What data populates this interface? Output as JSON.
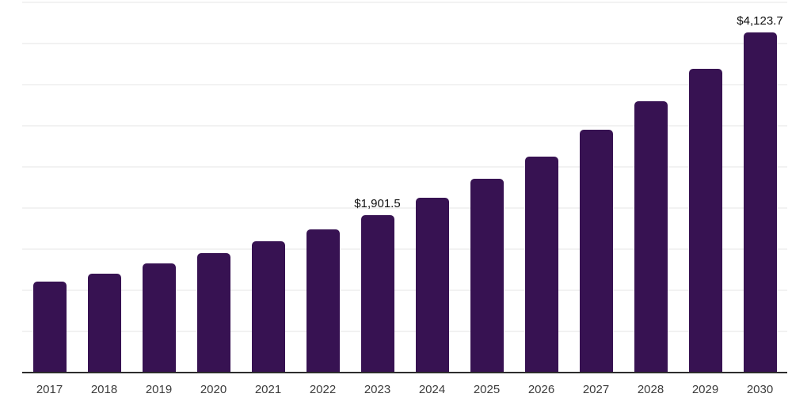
{
  "chart_data": {
    "type": "bar",
    "title": "",
    "xlabel": "",
    "ylabel": "",
    "categories": [
      "2017",
      "2018",
      "2019",
      "2020",
      "2021",
      "2022",
      "2023",
      "2024",
      "2025",
      "2026",
      "2027",
      "2028",
      "2029",
      "2030"
    ],
    "values": [
      1095,
      1190,
      1315,
      1440,
      1585,
      1730,
      1901.5,
      2115,
      2345,
      2615,
      2940,
      3290,
      3685,
      4123.7
    ],
    "data_labels": [
      "",
      "",
      "",
      "",
      "",
      "",
      "$1,901.5",
      "",
      "",
      "",
      "",
      "",
      "",
      "$4,123.7"
    ],
    "ylim": [
      0,
      4500
    ],
    "grid_step": 500,
    "grid": true,
    "legend": false,
    "y_axis_labels_visible": false,
    "colors": {
      "bar": "#371252",
      "gridline": "#f2f2f2",
      "axis": "#2d2d2d",
      "data_label": "#101010",
      "tick_label": "#3c3c3c",
      "background": "#ffffff"
    }
  }
}
